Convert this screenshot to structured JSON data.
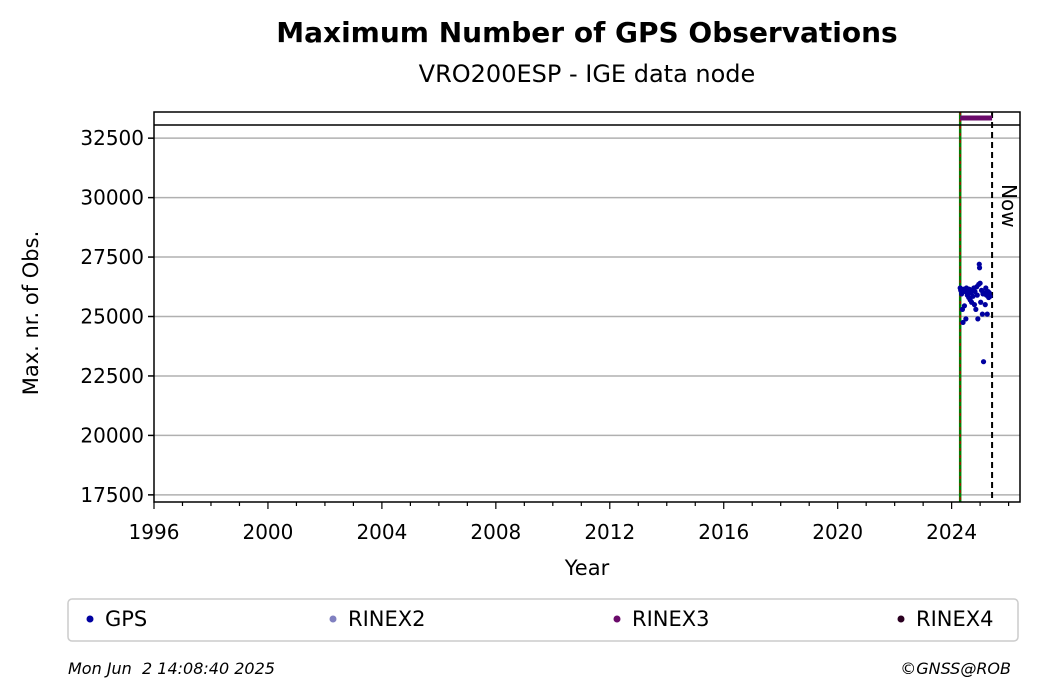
{
  "chart_data": {
    "type": "scatter",
    "title": "Maximum Number of GPS Observations",
    "subtitle": "VRO200ESP - IGE data node",
    "xlabel": "Year",
    "ylabel": "Max. nr. of Obs.",
    "xlim": [
      1996,
      2026.4
    ],
    "ylim": [
      17200,
      33600
    ],
    "x_ticks": [
      1996,
      2000,
      2004,
      2008,
      2012,
      2016,
      2020,
      2024
    ],
    "y_ticks": [
      17500,
      20000,
      22500,
      25000,
      27500,
      30000,
      32500
    ],
    "grid": "horizontal",
    "legend": [
      "GPS",
      "RINEX2",
      "RINEX3",
      "RINEX4"
    ],
    "legend_placement": "bottom",
    "colors": {
      "GPS": "#0000a0",
      "RINEX2": "#8080c0",
      "RINEX3": "#6a0a6a",
      "RINEX4": "#2a0020",
      "start_line": "#008000",
      "start_line_dash": "#c00000",
      "now_line": "#000000",
      "grid": "#b0b0b0"
    },
    "start_marker_x": 2024.3,
    "now_marker_x": 2025.42,
    "now_label": "Now",
    "rinex3_band": {
      "x_start": 2024.3,
      "x_end": 2025.42
    },
    "series": [
      {
        "name": "GPS",
        "points": [
          [
            2024.3,
            26200
          ],
          [
            2024.32,
            26100
          ],
          [
            2024.35,
            25950
          ],
          [
            2024.38,
            25300
          ],
          [
            2024.4,
            24750
          ],
          [
            2024.42,
            26150
          ],
          [
            2024.45,
            25450
          ],
          [
            2024.48,
            26050
          ],
          [
            2024.5,
            24900
          ],
          [
            2024.52,
            26200
          ],
          [
            2024.55,
            25900
          ],
          [
            2024.58,
            26100
          ],
          [
            2024.6,
            25800
          ],
          [
            2024.62,
            26150
          ],
          [
            2024.65,
            25700
          ],
          [
            2024.68,
            26000
          ],
          [
            2024.7,
            25600
          ],
          [
            2024.72,
            26100
          ],
          [
            2024.75,
            25850
          ],
          [
            2024.78,
            26200
          ],
          [
            2024.8,
            25500
          ],
          [
            2024.82,
            26050
          ],
          [
            2024.85,
            25300
          ],
          [
            2024.88,
            26250
          ],
          [
            2024.9,
            25900
          ],
          [
            2024.92,
            24900
          ],
          [
            2024.95,
            26350
          ],
          [
            2024.97,
            27200
          ],
          [
            2024.98,
            27050
          ],
          [
            2025.0,
            26400
          ],
          [
            2025.02,
            25600
          ],
          [
            2025.05,
            26100
          ],
          [
            2025.08,
            25100
          ],
          [
            2025.1,
            25950
          ],
          [
            2025.12,
            23100
          ],
          [
            2025.15,
            26000
          ],
          [
            2025.18,
            25500
          ],
          [
            2025.2,
            26200
          ],
          [
            2025.22,
            25900
          ],
          [
            2025.25,
            25100
          ],
          [
            2025.28,
            26050
          ],
          [
            2025.3,
            25800
          ],
          [
            2025.32,
            26000
          ],
          [
            2025.35,
            25850
          ]
        ]
      }
    ]
  },
  "footer": {
    "timestamp": "Mon Jun  2 14:08:40 2025",
    "credit": "©GNSS@ROB"
  }
}
